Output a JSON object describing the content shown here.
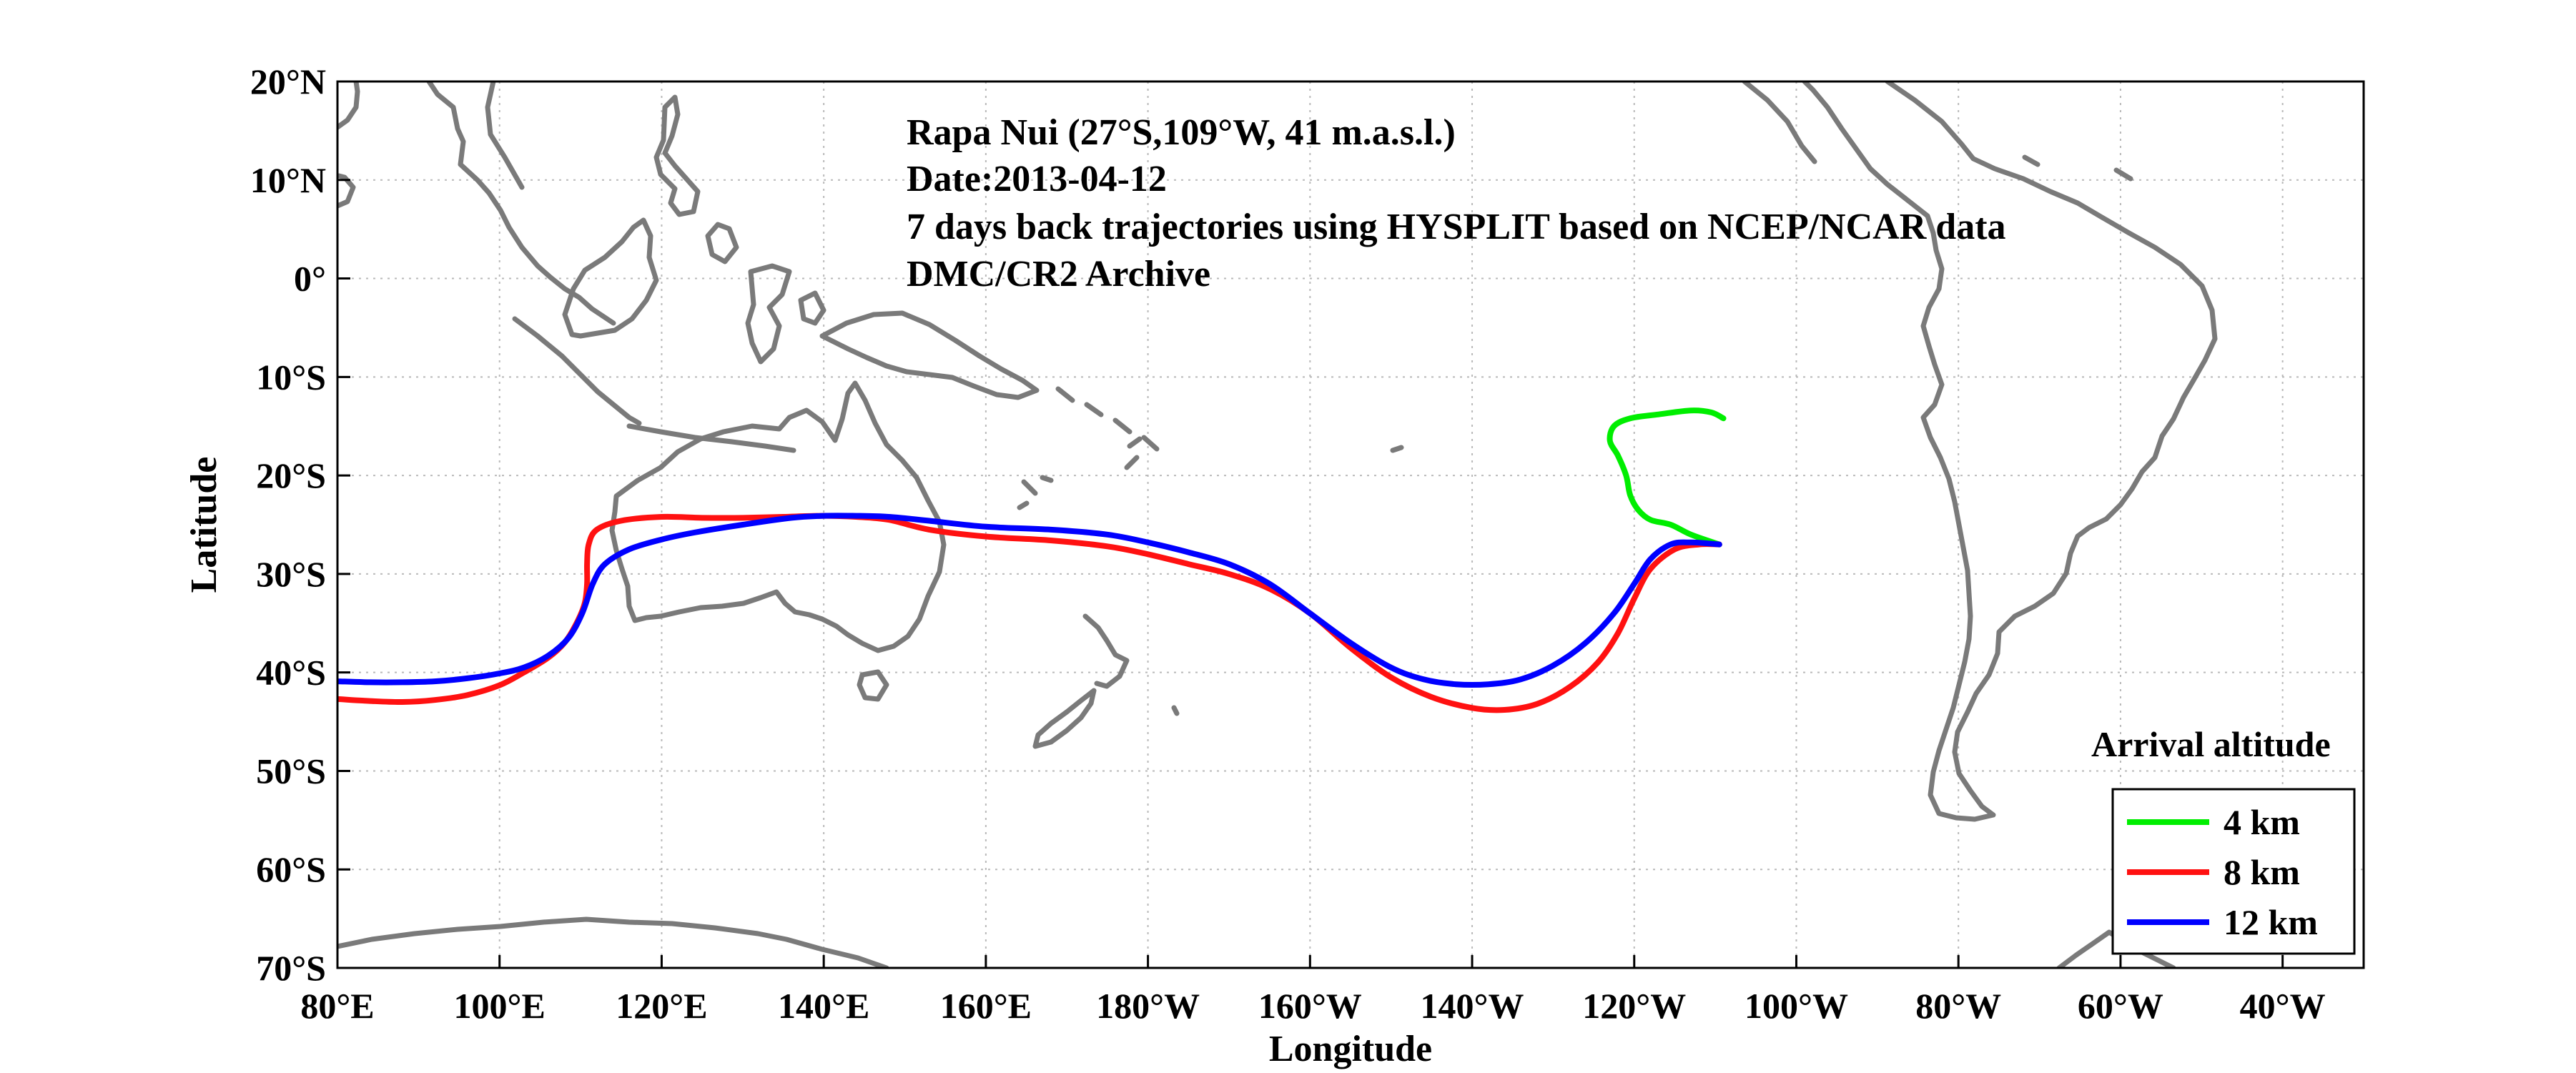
{
  "chart_data": {
    "type": "line",
    "annotation_lines": [
      "Rapa Nui (27°S,109°W, 41 m.a.s.l.)",
      "Date:2013-04-12",
      "7 days back trajectories using HYSPLIT based on NCEP/NCAR data",
      "DMC/CR2 Archive"
    ],
    "xlabel": "Longitude",
    "ylabel": "Latitude",
    "xlim": [
      80,
      330
    ],
    "ylim": [
      -70,
      20
    ],
    "grid": true,
    "x_ticks": [
      {
        "value": 80,
        "label": "80°E"
      },
      {
        "value": 100,
        "label": "100°E"
      },
      {
        "value": 120,
        "label": "120°E"
      },
      {
        "value": 140,
        "label": "140°E"
      },
      {
        "value": 160,
        "label": "160°E"
      },
      {
        "value": 180,
        "label": "180°W"
      },
      {
        "value": 200,
        "label": "160°W"
      },
      {
        "value": 220,
        "label": "140°W"
      },
      {
        "value": 240,
        "label": "120°W"
      },
      {
        "value": 260,
        "label": "100°W"
      },
      {
        "value": 280,
        "label": "80°W"
      },
      {
        "value": 300,
        "label": "60°W"
      },
      {
        "value": 320,
        "label": "40°W"
      }
    ],
    "y_ticks": [
      {
        "value": 20,
        "label": "20°N"
      },
      {
        "value": 10,
        "label": "10°N"
      },
      {
        "value": 0,
        "label": "0°"
      },
      {
        "value": -10,
        "label": "10°S"
      },
      {
        "value": -20,
        "label": "20°S"
      },
      {
        "value": -30,
        "label": "30°S"
      },
      {
        "value": -40,
        "label": "40°S"
      },
      {
        "value": -50,
        "label": "50°S"
      },
      {
        "value": -60,
        "label": "60°S"
      },
      {
        "value": -70,
        "label": "70°S"
      }
    ],
    "legend": {
      "title": "Arrival altitude",
      "placement": "bottom-right",
      "entries": [
        "4 km",
        "8 km",
        "12 km"
      ]
    },
    "series": [
      {
        "name": "4 km",
        "color": "#00ee00",
        "points": [
          [
            250.5,
            -27
          ],
          [
            247,
            -26
          ],
          [
            244.5,
            -25
          ],
          [
            242,
            -24.5
          ],
          [
            240.5,
            -23.5
          ],
          [
            239.5,
            -22
          ],
          [
            239,
            -20
          ],
          [
            238,
            -18
          ],
          [
            237,
            -16.5
          ],
          [
            237.5,
            -15
          ],
          [
            239.5,
            -14.2
          ],
          [
            243,
            -13.8
          ],
          [
            247,
            -13.4
          ],
          [
            249.5,
            -13.6
          ],
          [
            251,
            -14.2
          ]
        ]
      },
      {
        "name": "8 km",
        "color": "#ff1111",
        "points": [
          [
            250.5,
            -27
          ],
          [
            248,
            -27
          ],
          [
            245,
            -27.5
          ],
          [
            242,
            -29.5
          ],
          [
            240,
            -32.5
          ],
          [
            238,
            -36
          ],
          [
            235.5,
            -39
          ],
          [
            232,
            -41.5
          ],
          [
            228,
            -43.2
          ],
          [
            224,
            -43.8
          ],
          [
            220,
            -43.6
          ],
          [
            215,
            -42.5
          ],
          [
            210,
            -40.5
          ],
          [
            205,
            -37.5
          ],
          [
            200,
            -34
          ],
          [
            195,
            -31.5
          ],
          [
            190,
            -30
          ],
          [
            185,
            -29
          ],
          [
            180,
            -28
          ],
          [
            175,
            -27.2
          ],
          [
            168,
            -26.6
          ],
          [
            160,
            -26.2
          ],
          [
            153,
            -25.5
          ],
          [
            148,
            -24.5
          ],
          [
            144,
            -24.2
          ],
          [
            140,
            -24.1
          ],
          [
            135,
            -24.2
          ],
          [
            130,
            -24.3
          ],
          [
            125,
            -24.3
          ],
          [
            120,
            -24.2
          ],
          [
            115,
            -24.6
          ],
          [
            112,
            -25.5
          ],
          [
            111,
            -27
          ],
          [
            110.8,
            -29
          ],
          [
            110.8,
            -31
          ],
          [
            110.5,
            -33
          ],
          [
            109.5,
            -35
          ],
          [
            108,
            -37
          ],
          [
            106,
            -38.5
          ],
          [
            103,
            -40
          ],
          [
            100,
            -41.3
          ],
          [
            96,
            -42.3
          ],
          [
            92,
            -42.8
          ],
          [
            88,
            -43
          ],
          [
            84,
            -42.9
          ],
          [
            80,
            -42.7
          ]
        ]
      },
      {
        "name": "12 km",
        "color": "#0000ff",
        "points": [
          [
            250.5,
            -27
          ],
          [
            247,
            -26.8
          ],
          [
            244.5,
            -27
          ],
          [
            242,
            -28.5
          ],
          [
            240,
            -31
          ],
          [
            237.5,
            -34
          ],
          [
            234,
            -37
          ],
          [
            230,
            -39.3
          ],
          [
            226,
            -40.7
          ],
          [
            222,
            -41.2
          ],
          [
            218,
            -41.2
          ],
          [
            214,
            -40.7
          ],
          [
            210,
            -39.5
          ],
          [
            205,
            -37
          ],
          [
            200,
            -34
          ],
          [
            195,
            -31
          ],
          [
            190,
            -29
          ],
          [
            185,
            -27.8
          ],
          [
            180,
            -26.8
          ],
          [
            175,
            -26
          ],
          [
            168,
            -25.5
          ],
          [
            160,
            -25.2
          ],
          [
            153,
            -24.6
          ],
          [
            148,
            -24.2
          ],
          [
            144,
            -24.1
          ],
          [
            140,
            -24.1
          ],
          [
            136,
            -24.3
          ],
          [
            130,
            -25
          ],
          [
            124,
            -25.8
          ],
          [
            120,
            -26.5
          ],
          [
            116,
            -27.5
          ],
          [
            113,
            -29
          ],
          [
            111.5,
            -31
          ],
          [
            110.2,
            -34
          ],
          [
            108.5,
            -36.5
          ],
          [
            106,
            -38.3
          ],
          [
            103,
            -39.5
          ],
          [
            100,
            -40.1
          ],
          [
            96,
            -40.6
          ],
          [
            92,
            -40.9
          ],
          [
            88,
            -41
          ],
          [
            84,
            -41
          ],
          [
            80,
            -40.9
          ]
        ]
      }
    ]
  },
  "basemap": {
    "coastline_color": "#7a7a7a",
    "grid_color": "#b9b9b9",
    "regions": [
      "Southeast Asia",
      "Maritime Continent",
      "New Guinea",
      "Australia",
      "New Zealand",
      "South America",
      "Antarctica"
    ]
  }
}
